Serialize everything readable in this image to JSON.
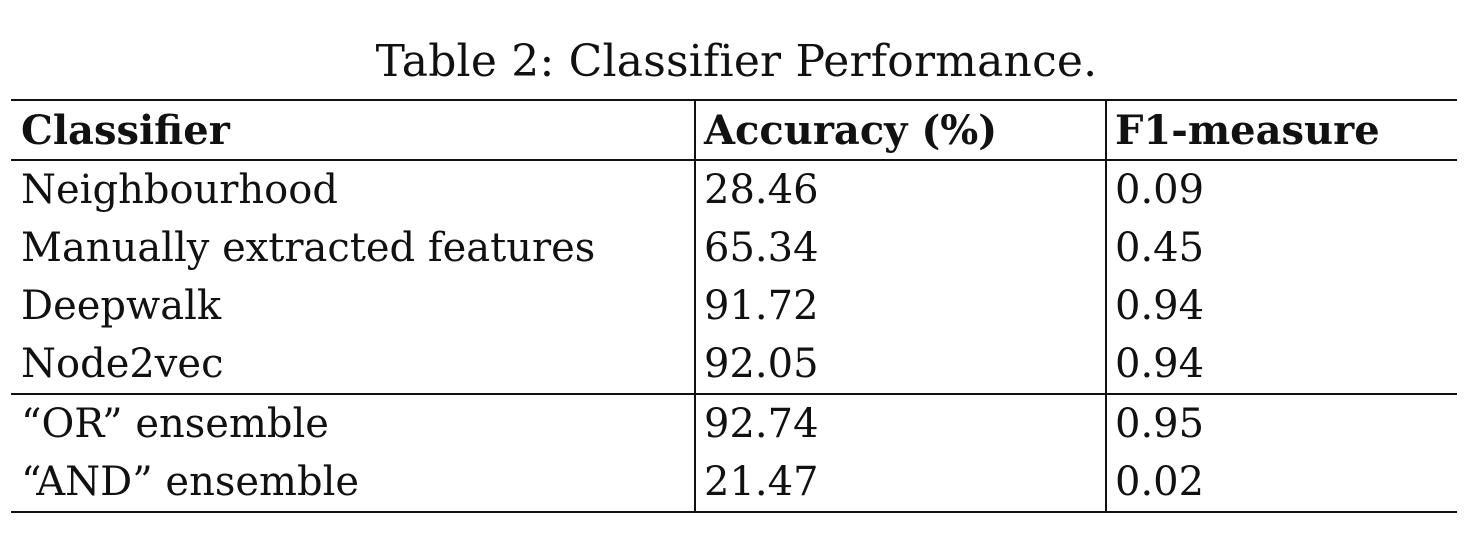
{
  "caption": "Table 2: Classifier Performance.",
  "table": {
    "headers": [
      "Classifier",
      "Accuracy (%)",
      "F1-measure"
    ],
    "groups": [
      [
        [
          "Neighbourhood",
          "28.46",
          "0.09"
        ],
        [
          "Manually extracted features",
          "65.34",
          "0.45"
        ],
        [
          "Deepwalk",
          "91.72",
          "0.94"
        ],
        [
          "Node2vec",
          "92.05",
          "0.94"
        ]
      ],
      [
        [
          "“OR” ensemble",
          "92.74",
          "0.95"
        ],
        [
          "“AND” ensemble",
          "21.47",
          "0.02"
        ]
      ]
    ]
  }
}
